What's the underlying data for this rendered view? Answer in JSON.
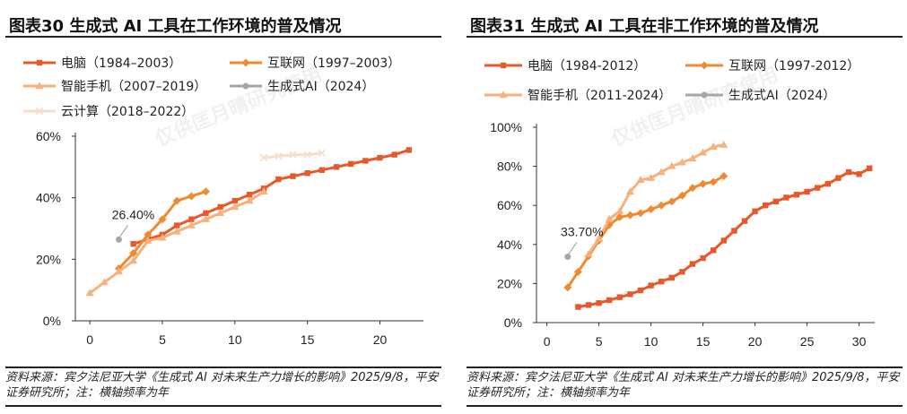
{
  "colors": {
    "pc": "#e8582a",
    "internet": "#f08a30",
    "smartphone": "#f5b27e",
    "genai": "#a6a6a6",
    "cloud": "#fadcca"
  },
  "chart_data": [
    {
      "panel_title": "图表30    生成式 AI 工具在工作环境的普及情况",
      "type": "line",
      "xlim": [
        -1,
        23
      ],
      "ylim": [
        0,
        60
      ],
      "x_ticks": [
        "0",
        "5",
        "10",
        "15",
        "20"
      ],
      "x_tick_values": [
        0,
        5,
        10,
        15,
        20
      ],
      "y_ticks": [
        "0%",
        "20%",
        "40%",
        "60%"
      ],
      "y_tick_values": [
        0,
        20,
        40,
        60
      ],
      "watermark": "仅供匡月晴研究使用",
      "series": [
        {
          "key": "pc",
          "name": "电脑（1984–2003）",
          "marker": "square",
          "x": [
            3,
            4,
            5,
            6,
            7,
            8,
            9,
            10,
            11,
            12,
            13,
            14,
            15,
            16,
            17,
            18,
            19,
            20,
            21,
            22
          ],
          "y": [
            25,
            26.5,
            28,
            31,
            33,
            35,
            37,
            39,
            41,
            43,
            46,
            47,
            48,
            49,
            50,
            51,
            52,
            53,
            54,
            55.5
          ]
        },
        {
          "key": "internet",
          "name": "互联网（1997–2003）",
          "marker": "diamond",
          "x": [
            2,
            3,
            4,
            5,
            6,
            7,
            8
          ],
          "y": [
            17,
            22,
            28,
            33,
            39,
            40.5,
            42
          ]
        },
        {
          "key": "smartphone",
          "name": "智能手机（2007–2019）",
          "marker": "triangle",
          "x": [
            0,
            1,
            2,
            3,
            4,
            5,
            6,
            7,
            8,
            9,
            10,
            11,
            12
          ],
          "y": [
            9,
            12.5,
            16,
            19.5,
            26,
            27,
            29,
            31,
            33,
            35,
            37,
            39,
            42
          ]
        },
        {
          "key": "genai",
          "name": "生成式AI（2024）",
          "marker": "circle",
          "x": [
            2
          ],
          "y": [
            26.4
          ]
        },
        {
          "key": "cloud",
          "name": "云计算（2018–2022）",
          "marker": "cross",
          "x": [
            12,
            13,
            14,
            15,
            16
          ],
          "y": [
            53,
            53.5,
            54,
            54,
            54.5
          ]
        }
      ],
      "annotations": [
        {
          "text": "26.40%",
          "x": 2,
          "y": 26.4
        }
      ]
    },
    {
      "panel_title": "图表31    生成式 AI 工具在非工作环境的普及情况",
      "type": "line",
      "xlim": [
        -1,
        31.5
      ],
      "ylim": [
        0,
        100
      ],
      "x_ticks": [
        "0",
        "5",
        "10",
        "15",
        "20",
        "25",
        "30"
      ],
      "x_tick_values": [
        0,
        5,
        10,
        15,
        20,
        25,
        30
      ],
      "y_ticks": [
        "0%",
        "20%",
        "40%",
        "60%",
        "80%",
        "100%"
      ],
      "y_tick_values": [
        0,
        20,
        40,
        60,
        80,
        100
      ],
      "watermark": "仅供匡月晴研究使用",
      "series": [
        {
          "key": "pc",
          "name": "电脑（1984-2012）",
          "marker": "square",
          "x": [
            3,
            4,
            5,
            6,
            7,
            8,
            9,
            10,
            11,
            12,
            13,
            14,
            15,
            16,
            17,
            18,
            19,
            20,
            21,
            22,
            23,
            24,
            25,
            26,
            27,
            28,
            29,
            30,
            31
          ],
          "y": [
            8,
            9,
            10,
            11.5,
            13,
            14.5,
            16.5,
            19,
            21,
            23,
            26,
            30,
            33,
            37,
            42,
            47,
            52,
            57,
            60,
            62,
            64,
            65.5,
            67,
            69,
            71,
            74,
            77,
            76,
            79
          ]
        },
        {
          "key": "internet",
          "name": "互联网（1997-2012）",
          "marker": "diamond",
          "x": [
            2,
            3,
            4,
            5,
            6,
            7,
            8,
            9,
            10,
            11,
            12,
            13,
            14,
            15,
            16,
            17
          ],
          "y": [
            18,
            26,
            34,
            42,
            50,
            54,
            55,
            56,
            58,
            60,
            62,
            65,
            69,
            71,
            72,
            75
          ]
        },
        {
          "key": "smartphone",
          "name": "智能手机（2011-2024）",
          "marker": "triangle",
          "x": [
            4,
            5,
            6,
            7,
            8,
            9,
            10,
            11,
            12,
            13,
            14,
            15,
            16,
            17
          ],
          "y": [
            35,
            43,
            53,
            57,
            67,
            73,
            74,
            77,
            80,
            82,
            84,
            87,
            90,
            91
          ]
        },
        {
          "key": "genai",
          "name": "生成式AI（2024）",
          "marker": "circle",
          "x": [
            2
          ],
          "y": [
            33.7
          ]
        }
      ],
      "annotations": [
        {
          "text": "33.70%",
          "x": 2,
          "y": 33.7
        }
      ]
    }
  ],
  "source_text": "资料来源：宾夕法尼亚大学《生成式 AI 对未来生产力增长的影响》2025/9/8，平安证券研究所；注：横轴频率为年"
}
